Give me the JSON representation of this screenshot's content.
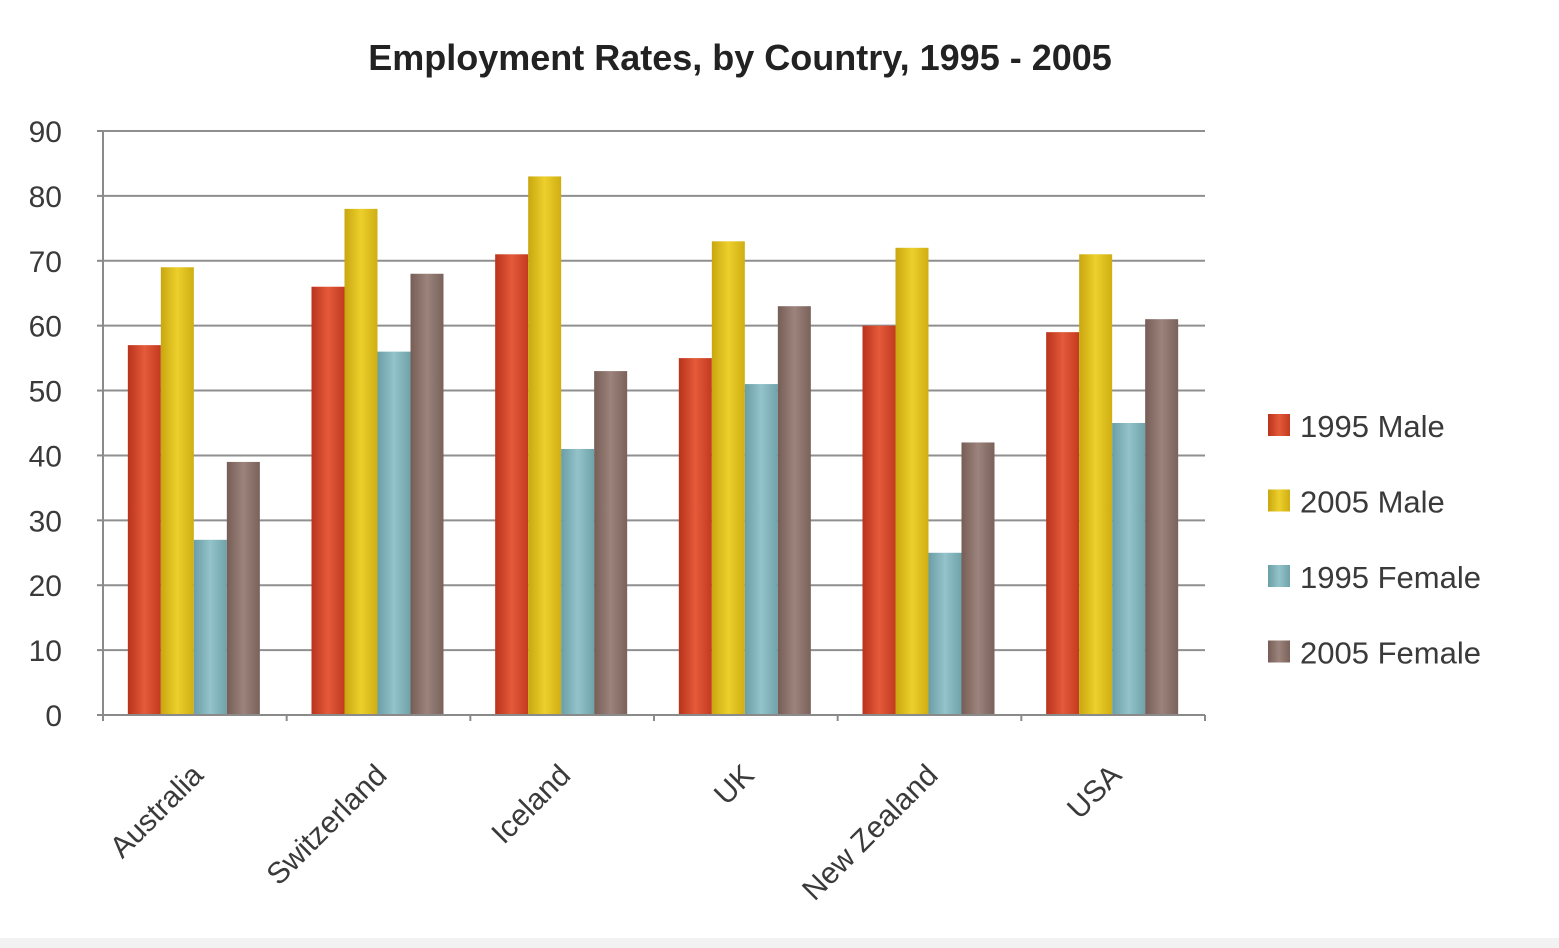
{
  "chart_data": {
    "type": "bar",
    "title": "Employment Rates, by Country, 1995  - 2005",
    "xlabel": "",
    "ylabel": "",
    "ylim": [
      0,
      90
    ],
    "yticks": [
      0,
      10,
      20,
      30,
      40,
      50,
      60,
      70,
      80,
      90
    ],
    "grid": true,
    "legend_position": "right",
    "categories": [
      "Australia",
      "Switzerland",
      "Iceland",
      "UK",
      "New Zealand",
      "USA"
    ],
    "series": [
      {
        "name": "1995 Male",
        "color": "#d4472c",
        "values": [
          57,
          66,
          71,
          55,
          60,
          59
        ]
      },
      {
        "name": "2005 Male",
        "color": "#dcbd1c",
        "values": [
          69,
          78,
          83,
          73,
          72,
          71
        ]
      },
      {
        "name": "1995 Female",
        "color": "#7fb0b8",
        "values": [
          27,
          56,
          41,
          51,
          25,
          45
        ]
      },
      {
        "name": "2005 Female",
        "color": "#8a716a",
        "values": [
          39,
          68,
          53,
          63,
          42,
          61
        ]
      }
    ]
  }
}
